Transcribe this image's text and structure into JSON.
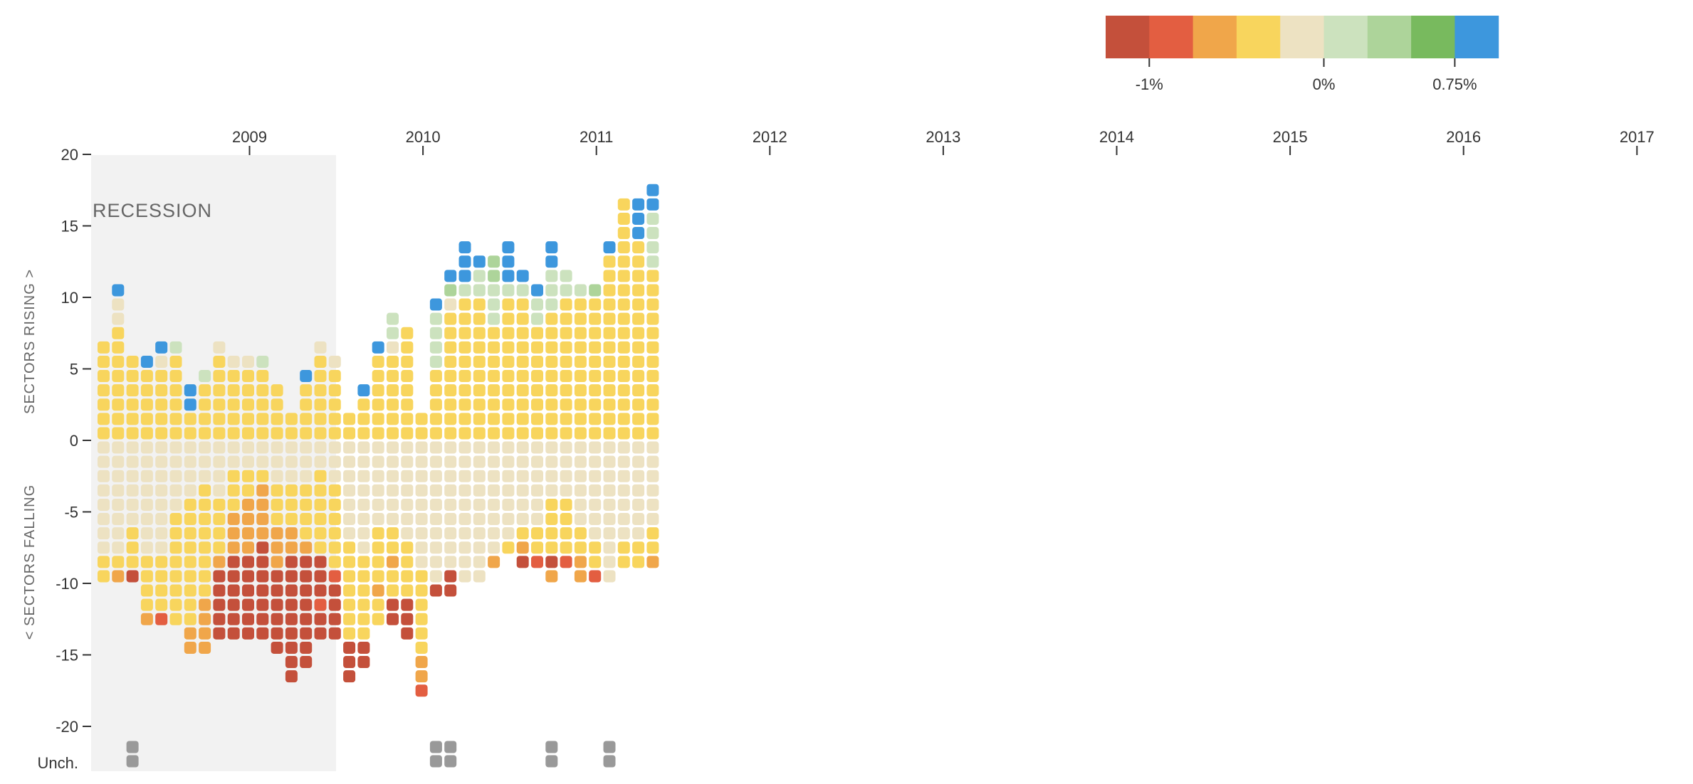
{
  "legend": {
    "colors": [
      "#c4503b",
      "#e35e41",
      "#f0a64a",
      "#f8d55d",
      "#ede2c2",
      "#cce2be",
      "#add49a",
      "#78ba5e",
      "#3d97dd"
    ],
    "labels": [
      "-1%",
      "0%",
      "0.75%"
    ]
  },
  "chart_data": {
    "type": "dot-matrix",
    "x_tick_labels": [
      "2009",
      "2010",
      "2011",
      "2012",
      "2013",
      "2014",
      "2015",
      "2016",
      "2017"
    ],
    "y_tick_labels": [
      "20",
      "15",
      "10",
      "5",
      "0",
      "-5",
      "-10",
      "-15",
      "-20",
      "Unch."
    ],
    "ylabel_top": "SECTORS RISING >",
    "ylabel_bottom": "< SECTORS FALLING",
    "annotation": "RECESSION",
    "ylim": [
      -20,
      20
    ],
    "recession_months": 17,
    "months": [
      {
        "rise": [
          3,
          3,
          3,
          3,
          3,
          3,
          3
        ],
        "fall": [
          4,
          4,
          4,
          4,
          4,
          4,
          4,
          4,
          3,
          3
        ],
        "unch": 0
      },
      {
        "rise": [
          3,
          3,
          3,
          3,
          3,
          3,
          3,
          3,
          4,
          4,
          8
        ],
        "fall": [
          4,
          4,
          4,
          4,
          4,
          4,
          4,
          4,
          3,
          2
        ],
        "unch": 0
      },
      {
        "rise": [
          3,
          3,
          3,
          3,
          3,
          3
        ],
        "fall": [
          4,
          4,
          4,
          4,
          4,
          4,
          3,
          3,
          3,
          0
        ],
        "unch": 2
      },
      {
        "rise": [
          3,
          3,
          3,
          3,
          3,
          8
        ],
        "fall": [
          4,
          4,
          4,
          4,
          4,
          4,
          4,
          4,
          3,
          3,
          3,
          3,
          2
        ],
        "unch": 0
      },
      {
        "rise": [
          3,
          3,
          3,
          3,
          3,
          4,
          8
        ],
        "fall": [
          4,
          4,
          4,
          4,
          4,
          4,
          4,
          4,
          3,
          3,
          3,
          3,
          1
        ],
        "unch": 0
      },
      {
        "rise": [
          3,
          3,
          3,
          3,
          3,
          3,
          5
        ],
        "fall": [
          4,
          4,
          4,
          4,
          4,
          3,
          3,
          3,
          3,
          3,
          3,
          3,
          3
        ],
        "unch": 0
      },
      {
        "rise": [
          3,
          3,
          8,
          8
        ],
        "fall": [
          4,
          4,
          4,
          4,
          3,
          3,
          3,
          3,
          3,
          3,
          3,
          3,
          3,
          2,
          2
        ],
        "unch": 0
      },
      {
        "rise": [
          3,
          3,
          3,
          3,
          5
        ],
        "fall": [
          4,
          4,
          4,
          3,
          3,
          3,
          3,
          3,
          3,
          3,
          3,
          2,
          2,
          2,
          2
        ],
        "unch": 0
      },
      {
        "rise": [
          3,
          3,
          3,
          3,
          3,
          3,
          4
        ],
        "fall": [
          4,
          4,
          4,
          4,
          3,
          3,
          3,
          3,
          2,
          0,
          0,
          0,
          0,
          0
        ],
        "unch": 0
      },
      {
        "rise": [
          3,
          3,
          3,
          3,
          3,
          4
        ],
        "fall": [
          4,
          4,
          3,
          3,
          3,
          2,
          2,
          2,
          0,
          0,
          0,
          0,
          0,
          0
        ],
        "unch": 0
      },
      {
        "rise": [
          3,
          3,
          3,
          3,
          3,
          4
        ],
        "fall": [
          4,
          4,
          3,
          3,
          2,
          2,
          2,
          2,
          0,
          0,
          0,
          0,
          0,
          0
        ],
        "unch": 0
      },
      {
        "rise": [
          3,
          3,
          3,
          3,
          3,
          5
        ],
        "fall": [
          4,
          4,
          3,
          2,
          2,
          2,
          2,
          0,
          0,
          0,
          0,
          0,
          0,
          0
        ],
        "unch": 0
      },
      {
        "rise": [
          3,
          3,
          3,
          3
        ],
        "fall": [
          4,
          4,
          4,
          3,
          3,
          3,
          2,
          2,
          2,
          0,
          0,
          0,
          0,
          0,
          0
        ],
        "unch": 0
      },
      {
        "rise": [
          3,
          3
        ],
        "fall": [
          4,
          4,
          4,
          3,
          3,
          3,
          2,
          2,
          0,
          0,
          0,
          0,
          0,
          0,
          0,
          0,
          0
        ],
        "unch": 0
      },
      {
        "rise": [
          3,
          3,
          3,
          3,
          8
        ],
        "fall": [
          4,
          4,
          4,
          3,
          3,
          3,
          3,
          2,
          0,
          0,
          0,
          0,
          0,
          0,
          0,
          0
        ],
        "unch": 0
      },
      {
        "rise": [
          3,
          3,
          3,
          3,
          3,
          3,
          4
        ],
        "fall": [
          4,
          4,
          3,
          3,
          3,
          3,
          3,
          3,
          0,
          0,
          0,
          1,
          0,
          0
        ],
        "unch": 0
      },
      {
        "rise": [
          3,
          3,
          3,
          3,
          3,
          4
        ],
        "fall": [
          4,
          4,
          4,
          3,
          3,
          3,
          3,
          3,
          3,
          1,
          0,
          0,
          0,
          0
        ],
        "unch": 0
      },
      {
        "rise": [
          3,
          3
        ],
        "fall": [
          4,
          4,
          4,
          4,
          4,
          4,
          4,
          3,
          3,
          3,
          3,
          3,
          3,
          3,
          0,
          0,
          0
        ],
        "unch": 0
      },
      {
        "rise": [
          3,
          3,
          3,
          8
        ],
        "fall": [
          4,
          4,
          4,
          4,
          4,
          4,
          4,
          4,
          3,
          3,
          3,
          3,
          3,
          3,
          0,
          0
        ],
        "unch": 0
      },
      {
        "rise": [
          3,
          3,
          3,
          3,
          3,
          3,
          8
        ],
        "fall": [
          4,
          4,
          4,
          4,
          4,
          4,
          3,
          3,
          3,
          3,
          2,
          3,
          3
        ],
        "unch": 0
      },
      {
        "rise": [
          3,
          3,
          3,
          3,
          3,
          3,
          4,
          5,
          5
        ],
        "fall": [
          4,
          4,
          4,
          4,
          4,
          4,
          3,
          3,
          2,
          3,
          3,
          0,
          0
        ],
        "unch": 0
      },
      {
        "rise": [
          3,
          3,
          3,
          3,
          3,
          3,
          3,
          3
        ],
        "fall": [
          4,
          4,
          4,
          4,
          4,
          4,
          4,
          3,
          3,
          3,
          3,
          0,
          0,
          0
        ],
        "unch": 0
      },
      {
        "rise": [
          3,
          3
        ],
        "fall": [
          4,
          4,
          4,
          4,
          4,
          4,
          4,
          4,
          4,
          3,
          3,
          3,
          3,
          3,
          3,
          2,
          2,
          1
        ],
        "unch": 0
      },
      {
        "rise": [
          3,
          3,
          3,
          3,
          3,
          5,
          5,
          5,
          5,
          8
        ],
        "fall": [
          4,
          4,
          4,
          4,
          4,
          4,
          4,
          4,
          4,
          4,
          0
        ],
        "unch": 2
      },
      {
        "rise": [
          3,
          3,
          3,
          3,
          3,
          3,
          3,
          3,
          3,
          4,
          6,
          8
        ],
        "fall": [
          4,
          4,
          4,
          4,
          4,
          4,
          4,
          4,
          4,
          0,
          0
        ],
        "unch": 2
      },
      {
        "rise": [
          3,
          3,
          3,
          3,
          3,
          3,
          3,
          3,
          3,
          3,
          5,
          8,
          8,
          8
        ],
        "fall": [
          4,
          4,
          4,
          4,
          4,
          4,
          4,
          4,
          4,
          4
        ],
        "unch": 0
      },
      {
        "rise": [
          3,
          3,
          3,
          3,
          3,
          3,
          3,
          3,
          3,
          3,
          5,
          5,
          8
        ],
        "fall": [
          4,
          4,
          4,
          4,
          4,
          4,
          4,
          4,
          4,
          4
        ],
        "unch": 0
      },
      {
        "rise": [
          3,
          3,
          3,
          3,
          3,
          3,
          3,
          3,
          5,
          5,
          5,
          6,
          6
        ],
        "fall": [
          4,
          4,
          4,
          4,
          4,
          4,
          4,
          4,
          2
        ],
        "unch": 0
      },
      {
        "rise": [
          3,
          3,
          3,
          3,
          3,
          3,
          3,
          3,
          3,
          3,
          5,
          8,
          8,
          8
        ],
        "fall": [
          4,
          4,
          4,
          4,
          4,
          4,
          4,
          3
        ],
        "unch": 0
      },
      {
        "rise": [
          3,
          3,
          3,
          3,
          3,
          3,
          3,
          3,
          3,
          3,
          5,
          8
        ],
        "fall": [
          4,
          4,
          4,
          4,
          4,
          4,
          3,
          2,
          0
        ],
        "unch": 0
      },
      {
        "rise": [
          3,
          3,
          3,
          3,
          3,
          3,
          3,
          3,
          5,
          5,
          8
        ],
        "fall": [
          4,
          4,
          4,
          4,
          4,
          4,
          3,
          3,
          1
        ],
        "unch": 0
      },
      {
        "rise": [
          3,
          3,
          3,
          3,
          3,
          3,
          3,
          3,
          3,
          5,
          5,
          5,
          8,
          8
        ],
        "fall": [
          4,
          4,
          4,
          4,
          3,
          3,
          3,
          3,
          0,
          2
        ],
        "unch": 2
      },
      {
        "rise": [
          3,
          3,
          3,
          3,
          3,
          3,
          3,
          3,
          3,
          3,
          5,
          5
        ],
        "fall": [
          4,
          4,
          4,
          4,
          3,
          3,
          3,
          3,
          1
        ],
        "unch": 0
      },
      {
        "rise": [
          3,
          3,
          3,
          3,
          3,
          3,
          3,
          3,
          3,
          3,
          5
        ],
        "fall": [
          4,
          4,
          4,
          4,
          4,
          4,
          3,
          3,
          2,
          2
        ],
        "unch": 0
      },
      {
        "rise": [
          3,
          3,
          3,
          3,
          3,
          3,
          3,
          3,
          3,
          3,
          6
        ],
        "fall": [
          4,
          4,
          4,
          4,
          4,
          4,
          4,
          3,
          3,
          1
        ],
        "unch": 0
      },
      {
        "rise": [
          3,
          3,
          3,
          3,
          3,
          3,
          3,
          3,
          3,
          3,
          3,
          3,
          3,
          8
        ],
        "fall": [
          4,
          4,
          4,
          4,
          4,
          4,
          4,
          4,
          4,
          4
        ],
        "unch": 2
      },
      {
        "rise": [
          3,
          3,
          3,
          3,
          3,
          3,
          3,
          3,
          3,
          3,
          3,
          3,
          3,
          3,
          3,
          3,
          3
        ],
        "fall": [
          4,
          4,
          4,
          4,
          4,
          4,
          4,
          3,
          3
        ],
        "unch": 0
      }
    ],
    "months_b": [
      {
        "rise": [
          3,
          3,
          3,
          3,
          3,
          3,
          3,
          3,
          3,
          3,
          3,
          3,
          3,
          3,
          8,
          8,
          8
        ],
        "fall": [
          4,
          4,
          4,
          4,
          4,
          4,
          4,
          3,
          3
        ],
        "unch": 0
      },
      {
        "rise": [
          3,
          3,
          3,
          3,
          3,
          3,
          3,
          3,
          3,
          3,
          3,
          3,
          5,
          5,
          5,
          5,
          8,
          8
        ],
        "fall": [
          4,
          4,
          4,
          4,
          4,
          4,
          3,
          3,
          2
        ],
        "unch": 0
      }
    ]
  }
}
